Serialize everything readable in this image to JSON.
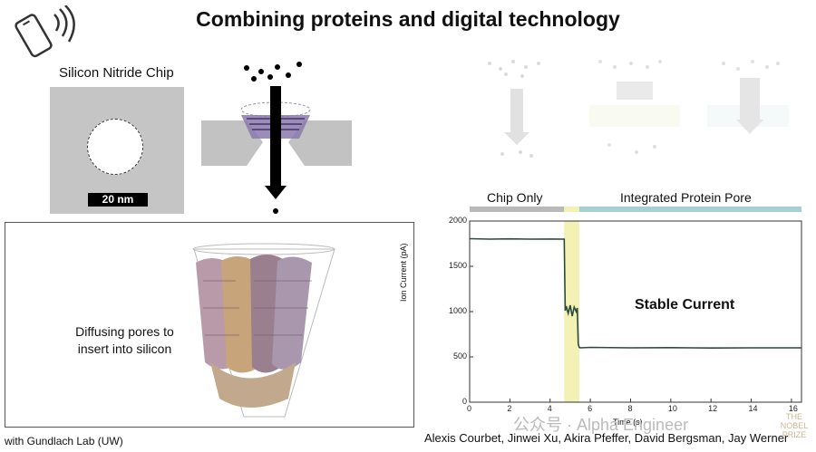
{
  "title": "Combining proteins and digital technology",
  "chip": {
    "label": "Silicon Nitride Chip",
    "scale": "20 nm"
  },
  "pore_panel": {
    "text": "Diffusing pores to insert into silicon"
  },
  "credits": {
    "left": "with Gundlach Lab (UW)",
    "right": "Alexis Courbet, Jinwei Xu, Akira Pfeffer, David Bergsman, Jay Werner"
  },
  "watermark": {
    "text": "公众号 · Alpha Engineer",
    "nobel": "THE NOBEL PRIZE"
  },
  "phases": {
    "chip_only": "Chip Only",
    "integrated": "Integrated Protein Pore"
  },
  "annotation": "Stable Current",
  "colors": {
    "chip_only_bar": "#b9b9b9",
    "integrated_bar": "#a7d0d0",
    "transition": "#f3f1b3",
    "trace": "#2d4a3e"
  },
  "chart_data": {
    "type": "line",
    "xlabel": "Time (s)",
    "ylabel": "Ion Current (pA)",
    "xlim": [
      0,
      16.5
    ],
    "ylim": [
      0,
      2000
    ],
    "xticks": [
      0,
      2,
      4,
      6,
      8,
      10,
      12,
      14,
      16
    ],
    "yticks": [
      0,
      500,
      1000,
      1500,
      2000
    ],
    "series": [
      {
        "x": [
          0,
          1,
          2,
          3,
          4,
          4.7,
          4.75,
          4.8,
          4.9,
          5.0,
          5.1,
          5.2,
          5.3,
          5.35,
          5.4,
          5.45,
          5.5,
          6,
          8,
          10,
          12,
          14,
          16,
          16.5
        ],
        "values": [
          1805,
          1800,
          1803,
          1800,
          1801,
          1800,
          1010,
          1060,
          980,
          1070,
          950,
          1050,
          1000,
          1040,
          640,
          605,
          600,
          605,
          600,
          602,
          598,
          600,
          600,
          600
        ]
      }
    ]
  }
}
